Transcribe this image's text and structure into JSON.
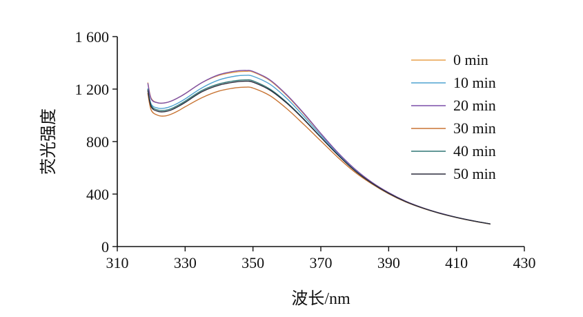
{
  "chart_data": {
    "type": "line",
    "xlabel": "波长/nm",
    "ylabel": "荧光强度",
    "xlim": [
      310,
      430
    ],
    "ylim": [
      0,
      1600
    ],
    "x_ticks": [
      310,
      330,
      350,
      370,
      390,
      410,
      430
    ],
    "x_tick_labels": [
      "310",
      "330",
      "350",
      "370",
      "390",
      "410",
      "430"
    ],
    "y_ticks": [
      0,
      400,
      800,
      1200,
      1600
    ],
    "y_tick_labels": [
      "0",
      "400",
      "800",
      "1 200",
      "1 600"
    ],
    "grid": false,
    "legend_position": "top-right",
    "x": [
      319,
      320,
      322,
      324,
      326,
      328,
      330,
      335,
      340,
      345,
      348,
      350,
      355,
      360,
      365,
      370,
      375,
      380,
      385,
      390,
      395,
      400,
      405,
      410,
      415,
      420
    ],
    "series": [
      {
        "name": "0 min",
        "color": "#E8A04A",
        "values": [
          1250,
          1130,
          1095,
          1095,
          1110,
          1135,
          1165,
          1250,
          1305,
          1330,
          1335,
          1330,
          1265,
          1150,
          1010,
          860,
          715,
          590,
          490,
          410,
          345,
          295,
          255,
          222,
          195,
          172
        ]
      },
      {
        "name": "10 min",
        "color": "#4FA3D1",
        "values": [
          1205,
          1085,
          1055,
          1055,
          1070,
          1095,
          1125,
          1210,
          1270,
          1300,
          1305,
          1298,
          1237,
          1128,
          992,
          848,
          707,
          585,
          487,
          408,
          344,
          294,
          255,
          222,
          195,
          172
        ]
      },
      {
        "name": "20 min",
        "color": "#7B4FA8",
        "values": [
          1245,
          1125,
          1095,
          1095,
          1110,
          1135,
          1165,
          1250,
          1310,
          1338,
          1342,
          1335,
          1270,
          1155,
          1015,
          862,
          717,
          592,
          491,
          411,
          346,
          296,
          256,
          223,
          196,
          172
        ]
      },
      {
        "name": "30 min",
        "color": "#C87433",
        "values": [
          1170,
          1040,
          1000,
          995,
          1010,
          1035,
          1065,
          1135,
          1185,
          1210,
          1215,
          1208,
          1150,
          1050,
          930,
          805,
          680,
          568,
          478,
          402,
          340,
          292,
          253,
          221,
          194,
          171
        ]
      },
      {
        "name": "40 min",
        "color": "#2F7775",
        "values": [
          1200,
          1075,
          1040,
          1038,
          1052,
          1078,
          1108,
          1190,
          1240,
          1265,
          1270,
          1263,
          1200,
          1098,
          972,
          834,
          700,
          580,
          484,
          406,
          343,
          294,
          254,
          222,
          195,
          172
        ]
      },
      {
        "name": "50 min",
        "color": "#2B2B3B",
        "values": [
          1190,
          1065,
          1030,
          1028,
          1042,
          1068,
          1098,
          1180,
          1230,
          1255,
          1260,
          1253,
          1192,
          1092,
          968,
          832,
          699,
          579,
          484,
          406,
          343,
          294,
          254,
          222,
          195,
          172
        ]
      }
    ]
  }
}
